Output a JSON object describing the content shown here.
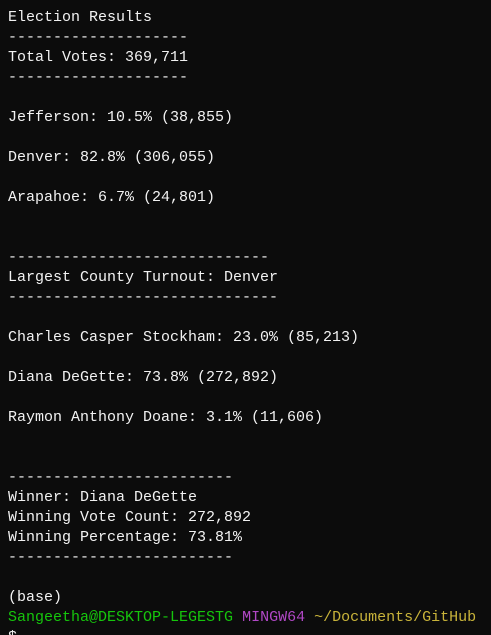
{
  "lines": [
    "Election Results",
    "--------------------",
    "Total Votes: 369,711",
    "--------------------",
    "Jefferson: 10.5% (38,855)",
    "Denver: 82.8% (306,055)",
    "Arapahoe: 6.7% (24,801)",
    "-----------------------------",
    "Largest County Turnout: Denver",
    "------------------------------",
    "Charles Casper Stockham: 23.0% (85,213)",
    "Diana DeGette: 73.8% (272,892)",
    "Raymon Anthony Doane: 3.1% (11,606)",
    "-------------------------",
    "Winner: Diana DeGette",
    "Winning Vote Count: 272,892",
    "Winning Percentage: 73.81%",
    "-------------------------",
    "(base)"
  ],
  "prompt": {
    "user": "Sangeetha@DESKTOP-LEGESTG",
    "system": "MINGW64",
    "path": "~/Documents/GitHub",
    "symbol": "$"
  }
}
